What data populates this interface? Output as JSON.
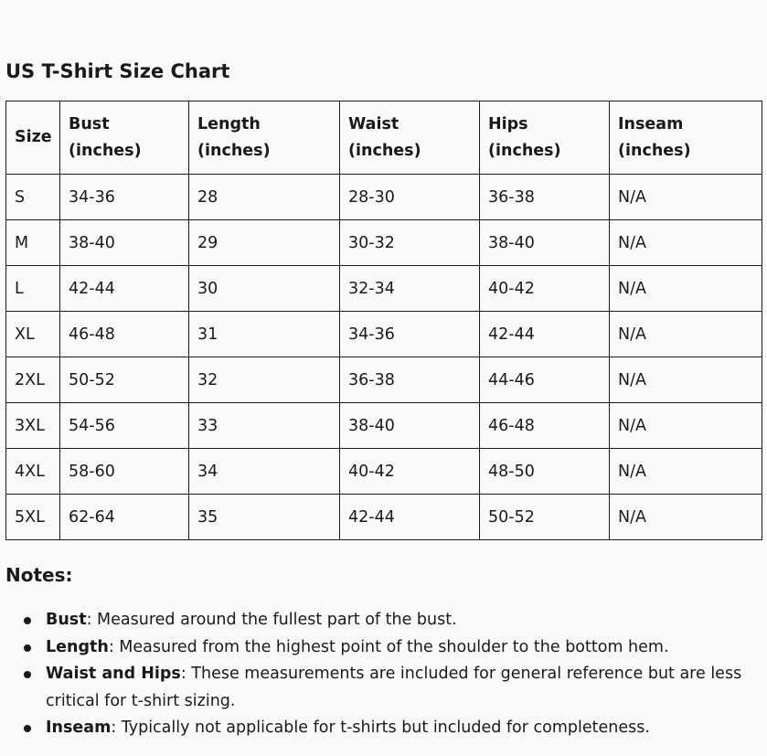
{
  "title": "US T-Shirt Size Chart",
  "table": {
    "headers": [
      {
        "line1": "Size",
        "line2": ""
      },
      {
        "line1": "Bust",
        "line2": "(inches)"
      },
      {
        "line1": "Length",
        "line2": "(inches)"
      },
      {
        "line1": "Waist",
        "line2": "(inches)"
      },
      {
        "line1": "Hips",
        "line2": "(inches)"
      },
      {
        "line1": "Inseam",
        "line2": "(inches)"
      }
    ],
    "rows": [
      [
        "S",
        "34-36",
        "28",
        "28-30",
        "36-38",
        "N/A"
      ],
      [
        "M",
        "38-40",
        "29",
        "30-32",
        "38-40",
        "N/A"
      ],
      [
        "L",
        "42-44",
        "30",
        "32-34",
        "40-42",
        "N/A"
      ],
      [
        "XL",
        "46-48",
        "31",
        "34-36",
        "42-44",
        "N/A"
      ],
      [
        "2XL",
        "50-52",
        "32",
        "36-38",
        "44-46",
        "N/A"
      ],
      [
        "3XL",
        "54-56",
        "33",
        "38-40",
        "46-48",
        "N/A"
      ],
      [
        "4XL",
        "58-60",
        "34",
        "40-42",
        "48-50",
        "N/A"
      ],
      [
        "5XL",
        "62-64",
        "35",
        "42-44",
        "50-52",
        "N/A"
      ]
    ]
  },
  "notes": {
    "heading": "Notes:",
    "items": [
      {
        "term": "Bust",
        "text": ": Measured around the fullest part of the bust."
      },
      {
        "term": "Length",
        "text": ": Measured from the highest point of the shoulder to the bottom hem."
      },
      {
        "term": "Waist and Hips",
        "text": ": These measurements are included for general reference but are less critical for t-shirt sizing."
      },
      {
        "term": "Inseam",
        "text": ": Typically not applicable for t-shirts but included for completeness."
      }
    ]
  }
}
